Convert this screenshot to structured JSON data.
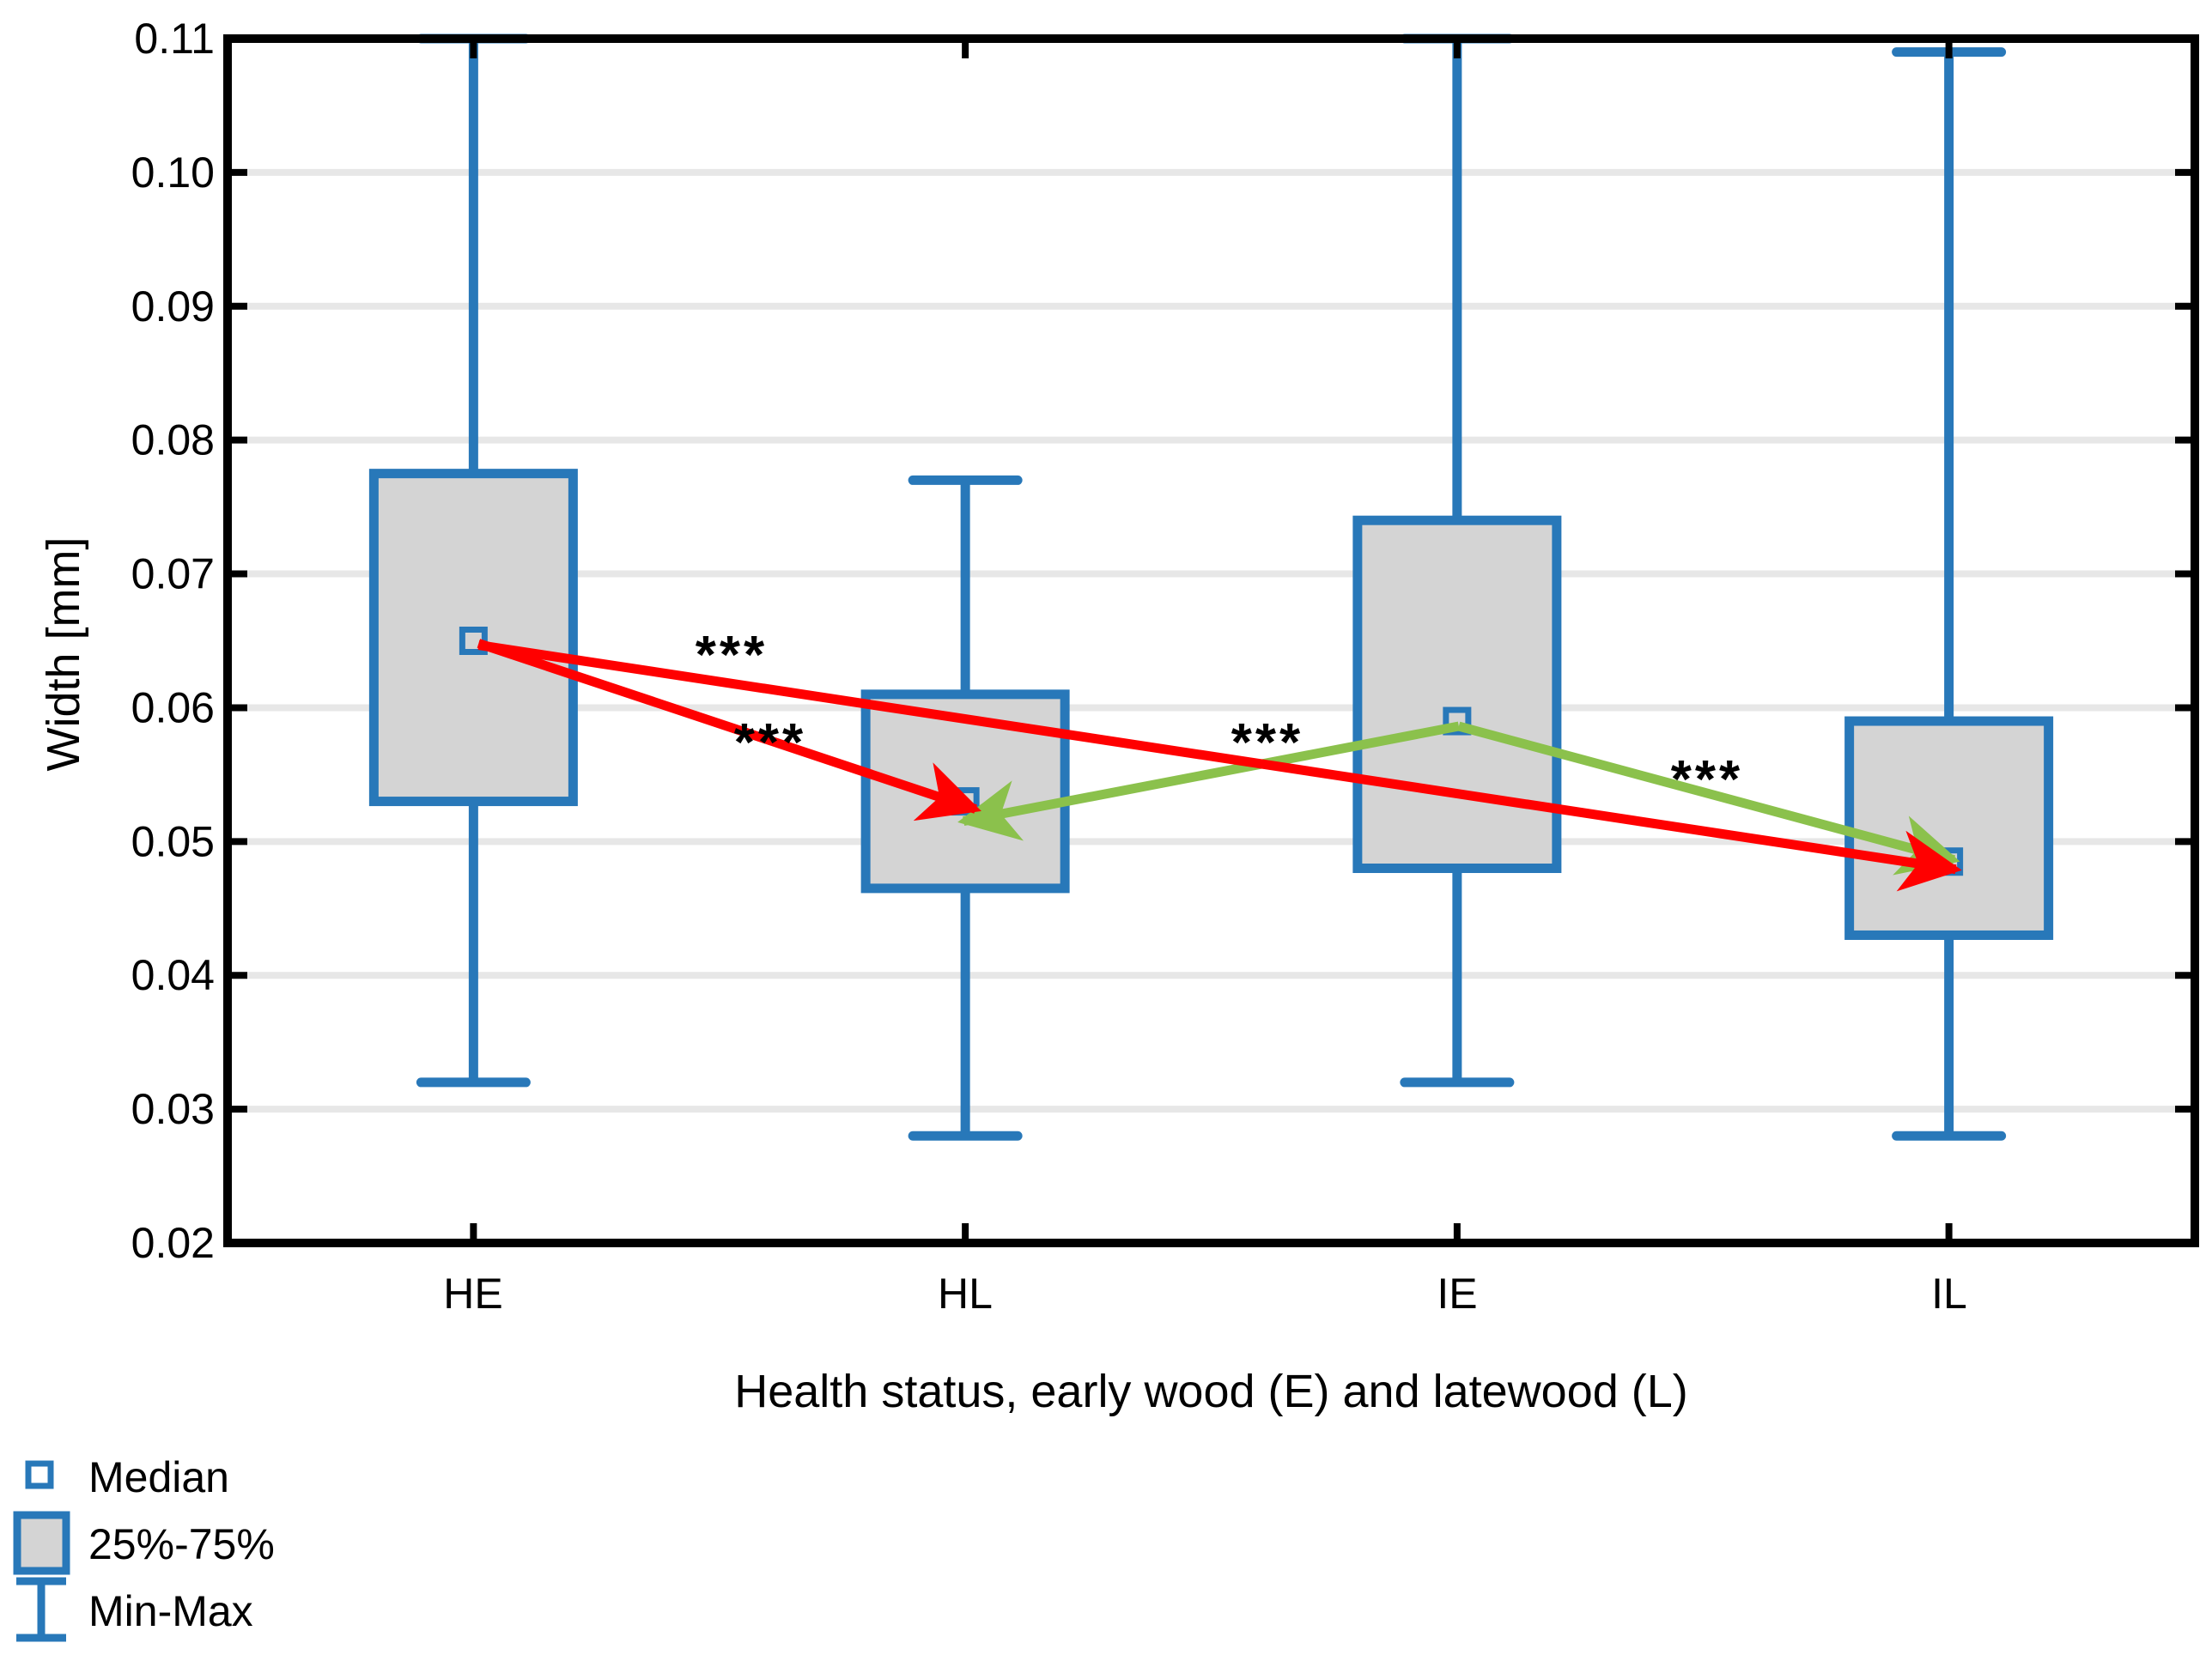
{
  "chart_data": {
    "type": "box",
    "title": "",
    "xlabel": "Health status, early wood (E) and latewood (L)",
    "ylabel": "Width [mm]",
    "ylim": [
      0.02,
      0.11
    ],
    "ytick_step": 0.01,
    "grid": "horizontal-light",
    "categories": [
      "HE",
      "HL",
      "IE",
      "IL"
    ],
    "boxes": [
      {
        "label": "HE",
        "min": 0.032,
        "q1": 0.053,
        "median": 0.065,
        "q3": 0.0775,
        "max": 0.11
      },
      {
        "label": "HL",
        "min": 0.028,
        "q1": 0.0465,
        "median": 0.053,
        "q3": 0.061,
        "max": 0.077
      },
      {
        "label": "IE",
        "min": 0.032,
        "q1": 0.048,
        "median": 0.059,
        "q3": 0.074,
        "max": 0.11
      },
      {
        "label": "IL",
        "min": 0.028,
        "q1": 0.043,
        "median": 0.0485,
        "q3": 0.059,
        "max": 0.109
      }
    ],
    "arrows": [
      {
        "from": "HE",
        "to": "HL",
        "color_key": "red",
        "significance": "***"
      },
      {
        "from": "HE",
        "to": "IL",
        "color_key": "red",
        "significance": "***"
      },
      {
        "from": "IE",
        "to": "HL",
        "color_key": "green",
        "significance": "***"
      },
      {
        "from": "IE",
        "to": "IL",
        "color_key": "green",
        "significance": "***"
      }
    ],
    "annotations": [
      {
        "text": "***",
        "x": 852,
        "y": 762
      },
      {
        "text": "***",
        "x": 897,
        "y": 864
      },
      {
        "text": "***",
        "x": 1476,
        "y": 864
      },
      {
        "text": "***",
        "x": 1988,
        "y": 907
      }
    ],
    "legend": [
      {
        "icon": "median-square-icon",
        "label": "Median"
      },
      {
        "icon": "iqr-box-icon",
        "label": "25%-75%"
      },
      {
        "icon": "minmax-whisker-icon",
        "label": "Min-Max"
      }
    ],
    "colors": {
      "box_border": "#2878B9",
      "box_fill": "#D4D4D4",
      "red": "#FF0000",
      "green": "#8BC14C",
      "grid": "#E7E7E7",
      "axis": "#000000",
      "text": "#000000"
    }
  }
}
